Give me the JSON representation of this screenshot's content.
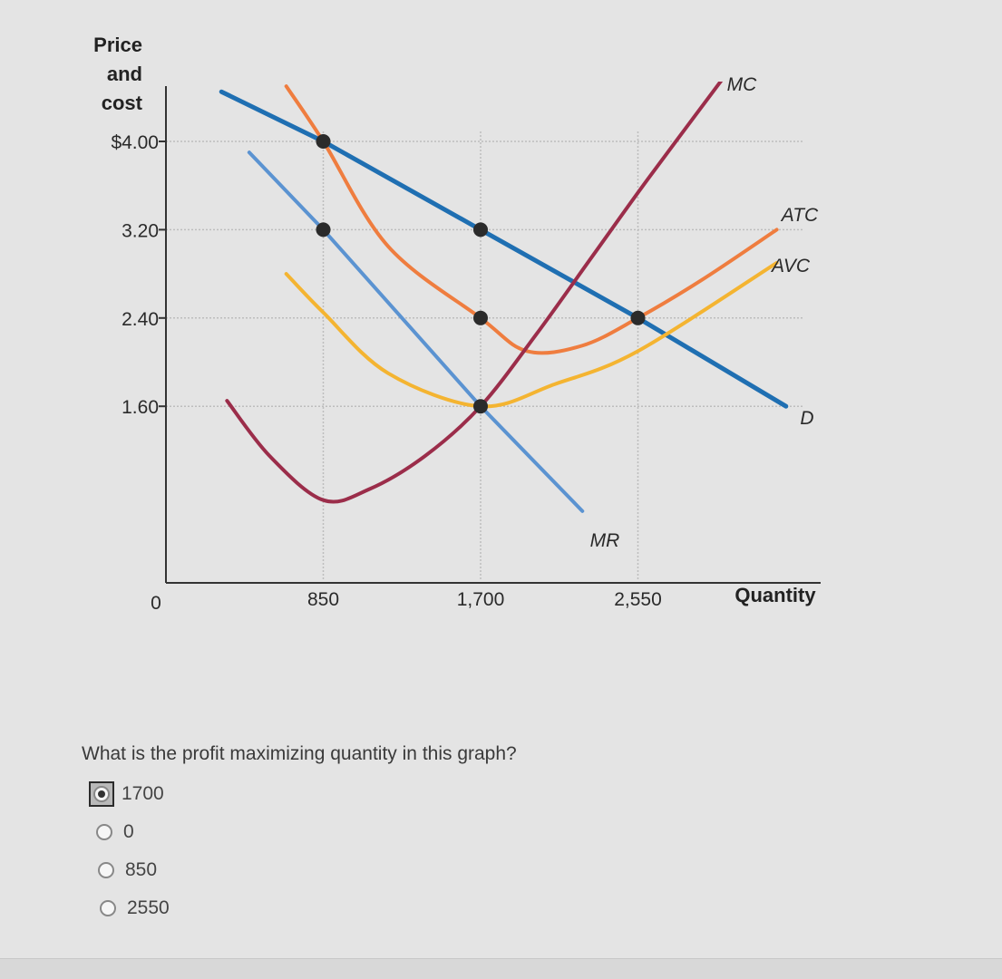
{
  "chart_data": {
    "type": "line",
    "ylabel_lines": [
      "Price",
      "and",
      "cost"
    ],
    "xlabel": "Quantity",
    "origin_label": "0",
    "xlim": [
      0,
      3100
    ],
    "ylim": [
      0,
      4.4
    ],
    "x_ticks": [
      {
        "value": 850,
        "label": "850"
      },
      {
        "value": 1700,
        "label": "1,700"
      },
      {
        "value": 2550,
        "label": "2,550"
      }
    ],
    "y_ticks": [
      {
        "value": 4.0,
        "label": "$4.00"
      },
      {
        "value": 3.2,
        "label": "3.20"
      },
      {
        "value": 2.4,
        "label": "2.40"
      },
      {
        "value": 1.6,
        "label": "1.60"
      }
    ],
    "series": [
      {
        "name": "D",
        "color": "#1f6fb2",
        "width": 5,
        "x": [
          300,
          850,
          1700,
          2550,
          3350
        ],
        "y": [
          4.45,
          4.0,
          3.2,
          2.4,
          1.6
        ]
      },
      {
        "name": "MR",
        "color": "#5b93d1",
        "width": 4,
        "x": [
          450,
          850,
          1700,
          2250
        ],
        "y": [
          3.9,
          3.2,
          1.6,
          0.65
        ]
      },
      {
        "name": "ATC",
        "color": "#ef7d3f",
        "width": 4,
        "x": [
          650,
          850,
          1200,
          1700,
          1950,
          2250,
          2550,
          2900,
          3300
        ],
        "y": [
          4.5,
          4.0,
          3.05,
          2.4,
          2.1,
          2.15,
          2.4,
          2.75,
          3.2
        ]
      },
      {
        "name": "AVC",
        "color": "#f4b431",
        "width": 4,
        "x": [
          650,
          850,
          1200,
          1700,
          2100,
          2550,
          3300
        ],
        "y": [
          2.8,
          2.45,
          1.9,
          1.6,
          1.8,
          2.1,
          2.9
        ]
      },
      {
        "name": "MC",
        "color": "#9b2d4a",
        "width": 4,
        "x": [
          330,
          560,
          850,
          1100,
          1400,
          1700,
          2000,
          2300,
          2600,
          3000
        ],
        "y": [
          1.65,
          1.15,
          0.75,
          0.85,
          1.15,
          1.6,
          2.25,
          2.95,
          3.65,
          4.55
        ]
      }
    ],
    "points": [
      {
        "x": 850,
        "y": 4.0
      },
      {
        "x": 850,
        "y": 3.2
      },
      {
        "x": 1700,
        "y": 3.2
      },
      {
        "x": 1700,
        "y": 2.4
      },
      {
        "x": 1700,
        "y": 1.6
      },
      {
        "x": 2550,
        "y": 2.4
      }
    ],
    "grid": true,
    "label_positions": {
      "MC": "top",
      "ATC": "right",
      "AVC": "right",
      "D": "right",
      "MR": "bottom"
    }
  },
  "quiz": {
    "question": "What is the profit maximizing quantity in this graph?",
    "options": [
      {
        "label": "1700",
        "selected": true
      },
      {
        "label": "0",
        "selected": false
      },
      {
        "label": "850",
        "selected": false
      },
      {
        "label": "2550",
        "selected": false
      }
    ]
  }
}
